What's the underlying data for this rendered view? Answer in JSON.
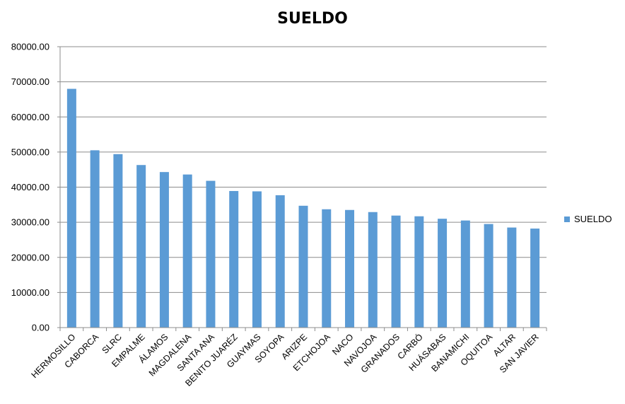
{
  "chart_data": {
    "type": "bar",
    "title": "SUELDO",
    "categories": [
      "HERMOSILLO",
      "CABORCA",
      "SLRC",
      "EMPALME",
      "ÁLAMOS",
      "MAGDALENA",
      "SANTA ANA",
      "BENITO JUARÉZ",
      "GUAYMAS",
      "SOYOPA",
      "ARIZPE",
      "ETCHOJOA",
      "NACO",
      "NAVOJOA",
      "GRANADOS",
      "CARBÓ",
      "HUÁSABAS",
      "BANAMICHI",
      "OQUITOA",
      "ALTAR",
      "SAN JAVIER"
    ],
    "series": [
      {
        "name": "SUELDO",
        "values": [
          68000,
          50500,
          49400,
          46300,
          44300,
          43600,
          41800,
          38900,
          38800,
          37700,
          34700,
          33700,
          33500,
          32900,
          31900,
          31700,
          31000,
          30500,
          29500,
          28500,
          28200
        ]
      }
    ],
    "ylim": [
      0,
      80000
    ],
    "yticks": [
      "0.00",
      "10000.00",
      "20000.00",
      "30000.00",
      "40000.00",
      "50000.00",
      "60000.00",
      "70000.00",
      "80000.00"
    ],
    "grid": true,
    "legend_position": "right",
    "bar_color": "#5B9BD5"
  }
}
